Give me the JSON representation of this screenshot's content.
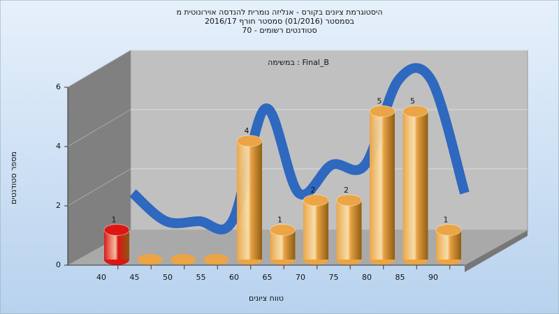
{
  "chart_data": {
    "type": "bar",
    "title_lines": [
      "היסטוגרמת ציונים בקורס - אנליזה נומרית להנדסה אוירונוטית מ",
      "בסמסטר  (01/2016)  סמסטר חורף  2016/17",
      "סטודנטים רשומים - 70"
    ],
    "annotation": "במשימה : Final_B",
    "x_label": "טווח ציונים",
    "y_label": "מספר סטודנטים",
    "categories": [
      "40",
      "45",
      "50",
      "55",
      "60",
      "65",
      "70",
      "75",
      "80",
      "85",
      "90"
    ],
    "values": [
      1,
      0,
      0,
      0,
      4,
      1,
      2,
      2,
      5,
      5,
      1
    ],
    "colors": [
      "#dd1515",
      "#eba446",
      "#eba446",
      "#eba446",
      "#eba446",
      "#eba446",
      "#eba446",
      "#eba446",
      "#eba446",
      "#eba446",
      "#eba446"
    ],
    "curve_color": "#2e68bf",
    "ylim": [
      0,
      6
    ],
    "yticks": [
      0,
      2,
      4,
      6
    ],
    "grid": true
  }
}
